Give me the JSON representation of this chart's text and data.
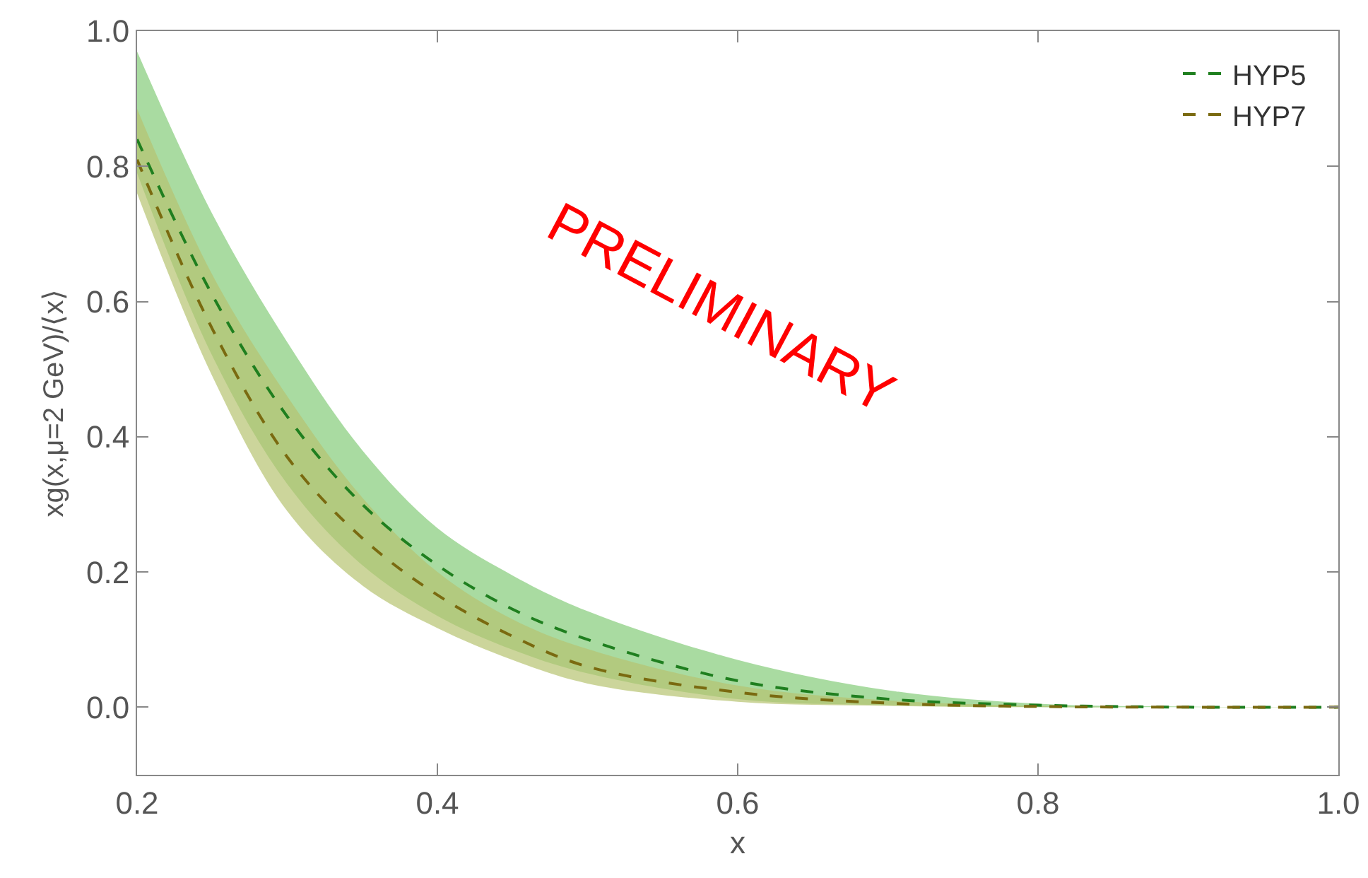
{
  "chart_data": {
    "type": "line",
    "xlabel": "x",
    "ylabel": "xg(x,μ=2 GeV)/⟨x⟩",
    "x": [
      0.2,
      0.25,
      0.3,
      0.35,
      0.4,
      0.45,
      0.5,
      0.6,
      0.7,
      0.8,
      0.9,
      1.0
    ],
    "series": [
      {
        "name": "HYP5",
        "color": "#1f7f1f",
        "values": [
          0.84,
          0.61,
          0.43,
          0.3,
          0.21,
          0.145,
          0.1,
          0.039,
          0.012,
          0.003,
          0,
          0
        ],
        "upper": [
          0.97,
          0.73,
          0.54,
          0.38,
          0.265,
          0.195,
          0.142,
          0.07,
          0.025,
          0.005,
          0.001,
          0
        ],
        "lower": [
          0.79,
          0.52,
          0.33,
          0.21,
          0.135,
          0.085,
          0.05,
          0.012,
          0.003,
          0,
          0,
          0
        ]
      },
      {
        "name": "HYP7",
        "color": "#7a6a10",
        "values": [
          0.81,
          0.56,
          0.37,
          0.25,
          0.166,
          0.105,
          0.06,
          0.022,
          0.006,
          0.001,
          0,
          0
        ],
        "upper": [
          0.885,
          0.64,
          0.46,
          0.31,
          0.2,
          0.13,
          0.086,
          0.032,
          0.01,
          0.002,
          0,
          0
        ],
        "lower": [
          0.76,
          0.49,
          0.29,
          0.18,
          0.117,
          0.07,
          0.035,
          0.008,
          0.002,
          0,
          0,
          0
        ]
      }
    ],
    "xlim": [
      0.2,
      1.0
    ],
    "ylim": [
      -0.1,
      1.0
    ],
    "xticks": [
      0.2,
      0.4,
      0.6,
      0.8,
      {
        "value": 1,
        "label": "1.0"
      }
    ],
    "yticks": [
      {
        "value": 0,
        "label": "0.0"
      },
      0.2,
      0.4,
      0.6,
      0.8,
      {
        "value": 1,
        "label": "1.0"
      }
    ],
    "line_style": "dashed",
    "marker": "none",
    "grid": false,
    "legend": "top right",
    "annotations": [
      "PRELIMINARY"
    ]
  }
}
